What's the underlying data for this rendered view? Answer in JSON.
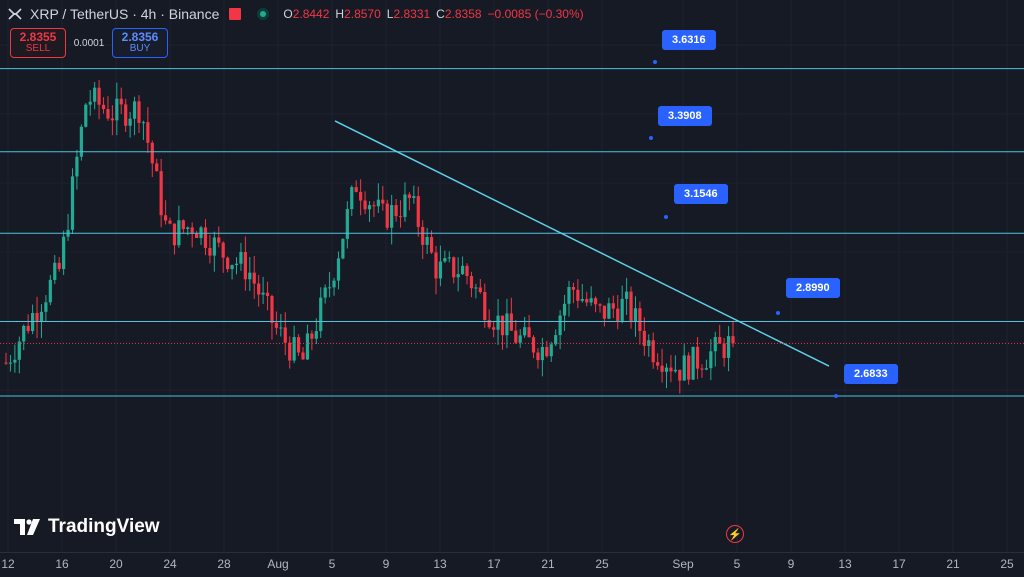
{
  "header": {
    "symbol": "XRP / TetherUS · 4h · Binance",
    "ohlc": {
      "o_label": "O",
      "o": "2.8442",
      "h_label": "H",
      "h": "2.8570",
      "l_label": "L",
      "l": "2.8331",
      "c_label": "C",
      "c": "2.8358",
      "change": "−0.0085 (−0.30%)"
    }
  },
  "trade": {
    "sell_price": "2.8355",
    "sell_label": "SELL",
    "spread": "0.0001",
    "buy_price": "2.8356",
    "buy_label": "BUY"
  },
  "levels": [
    {
      "label": "3.6316",
      "value": 3.6316
    },
    {
      "label": "3.3908",
      "value": 3.3908
    },
    {
      "label": "3.1546",
      "value": 3.1546
    },
    {
      "label": "2.8990",
      "value": 2.899
    },
    {
      "label": "2.6833",
      "value": 2.6833
    }
  ],
  "x_axis_labels": [
    "12",
    "16",
    "20",
    "24",
    "28",
    "Aug",
    "5",
    "9",
    "13",
    "17",
    "21",
    "25",
    "Sep",
    "5",
    "9",
    "13",
    "17",
    "21",
    "25"
  ],
  "logo": {
    "text": "TradingView"
  },
  "colors": {
    "background": "#161a25",
    "level_line": "#4dc3e0",
    "trendline": "#5fd0e8",
    "up": "#22ab94",
    "down": "#f23645",
    "tag": "#2962ff",
    "current_price_line": "#f23645"
  },
  "chart_data": {
    "type": "candlestick",
    "symbol": "XRP / TetherUS",
    "interval": "4h",
    "exchange": "Binance",
    "current_price": 2.8358,
    "horizontal_levels": [
      3.6316,
      3.3908,
      3.1546,
      2.899,
      2.6833
    ],
    "trendline": {
      "from": {
        "date": "Aug 6",
        "price": 3.48
      },
      "to": {
        "date": "Sep 11",
        "price": 2.77
      }
    },
    "close_series_approx": {
      "dates": [
        "Jul 12",
        "Jul 14",
        "Jul 16",
        "Jul 18",
        "Jul 20",
        "Jul 22",
        "Jul 24",
        "Jul 26",
        "Jul 28",
        "Jul 30",
        "Aug 1",
        "Aug 3",
        "Aug 5",
        "Aug 7",
        "Aug 9",
        "Aug 11",
        "Aug 13",
        "Aug 15",
        "Aug 17",
        "Aug 19",
        "Aug 21",
        "Aug 23",
        "Aug 25",
        "Aug 27",
        "Aug 29",
        "Aug 31",
        "Sep 2",
        "Sep 3"
      ],
      "values": [
        2.78,
        2.92,
        3.05,
        3.55,
        3.5,
        3.52,
        3.15,
        3.18,
        3.1,
        3.05,
        2.88,
        2.78,
        3.0,
        3.3,
        3.2,
        3.25,
        3.05,
        3.05,
        2.92,
        2.85,
        2.82,
        3.0,
        2.92,
        2.95,
        2.82,
        2.76,
        2.8,
        2.84
      ]
    }
  }
}
